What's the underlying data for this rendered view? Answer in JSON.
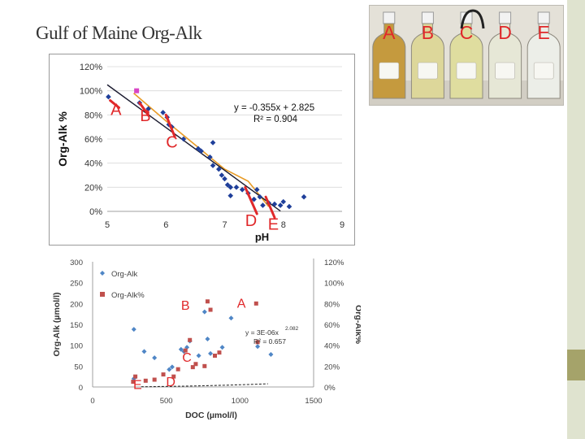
{
  "slide": {
    "title": "Gulf of Maine Org-Alk"
  },
  "photo": {
    "description_labels": [
      "A",
      "B",
      "C",
      "D",
      "E"
    ],
    "bottle_colors": [
      "#c59a3e",
      "#ddd79a",
      "#dfdd9f",
      "#e6e7d6",
      "#eceee8"
    ],
    "label_color": "#e0282a"
  },
  "chart_data": [
    {
      "type": "scatter",
      "title": "",
      "xlabel": "pH",
      "ylabel": "Org-Alk %",
      "xlim": [
        5,
        9
      ],
      "ylim": [
        0,
        1.2
      ],
      "xticks": [
        "5",
        "6",
        "7",
        "8",
        "9"
      ],
      "yticks": [
        "0%",
        "20%",
        "40%",
        "60%",
        "80%",
        "100%",
        "120%"
      ],
      "series": [
        {
          "name": "samples",
          "color": "#1f3f9a",
          "points": [
            [
              5.02,
              0.95
            ],
            [
              5.55,
              0.9
            ],
            [
              5.7,
              0.85
            ],
            [
              5.95,
              0.82
            ],
            [
              6.02,
              0.78
            ],
            [
              6.05,
              0.72
            ],
            [
              6.1,
              0.7
            ],
            [
              6.3,
              0.6
            ],
            [
              6.55,
              0.52
            ],
            [
              6.6,
              0.5
            ],
            [
              6.75,
              0.45
            ],
            [
              6.8,
              0.38
            ],
            [
              6.9,
              0.35
            ],
            [
              6.95,
              0.3
            ],
            [
              7.0,
              0.27
            ],
            [
              7.05,
              0.22
            ],
            [
              7.1,
              0.2
            ],
            [
              7.2,
              0.2
            ],
            [
              7.3,
              0.18
            ],
            [
              7.4,
              0.15
            ],
            [
              7.5,
              0.1
            ],
            [
              7.55,
              0.18
            ],
            [
              7.6,
              0.12
            ],
            [
              7.65,
              0.05
            ],
            [
              7.75,
              0.07
            ],
            [
              7.85,
              0.06
            ],
            [
              7.95,
              0.05
            ],
            [
              8.0,
              0.08
            ],
            [
              8.1,
              0.04
            ],
            [
              8.35,
              0.12
            ],
            [
              6.8,
              0.57
            ],
            [
              7.1,
              0.13
            ]
          ]
        },
        {
          "name": "highlight",
          "color": "#d946c5",
          "points": [
            [
              5.5,
              1.0
            ]
          ]
        }
      ],
      "trendline": {
        "color": "#1a1a2e",
        "x_range": [
          5.0,
          7.95
        ],
        "equation": "y = -0.355x + 2.825",
        "r2": "R² = 0.904"
      },
      "fit_line": {
        "color": "#e89b26",
        "points": [
          [
            5.45,
            0.98
          ],
          [
            6.0,
            0.75
          ],
          [
            6.5,
            0.55
          ],
          [
            7.0,
            0.35
          ],
          [
            7.4,
            0.25
          ],
          [
            7.75,
            0.04
          ]
        ]
      },
      "annotations": [
        {
          "label": "A",
          "x": 5.15,
          "y": 0.8,
          "color": "#e0282a"
        },
        {
          "label": "B",
          "x": 5.65,
          "y": 0.75,
          "color": "#e0282a"
        },
        {
          "label": "C",
          "x": 6.1,
          "y": 0.53,
          "color": "#e0282a"
        },
        {
          "label": "D",
          "x": 7.45,
          "y": -0.12,
          "color": "#e0282a"
        },
        {
          "label": "E",
          "x": 7.83,
          "y": -0.15,
          "color": "#e0282a"
        }
      ]
    },
    {
      "type": "scatter",
      "title": "",
      "xlabel": "DOC (µmol/l)",
      "ylabel": "Org-Alk (µmol/l)",
      "y2label": "Org-Alk%",
      "xlim": [
        0,
        1500
      ],
      "ylim": [
        0,
        300
      ],
      "y2lim": [
        0,
        1.2
      ],
      "xticks": [
        "0",
        "500",
        "1000",
        "1500"
      ],
      "yticks": [
        "0",
        "50",
        "100",
        "150",
        "200",
        "250",
        "300"
      ],
      "y2ticks": [
        "0%",
        "20%",
        "40%",
        "60%",
        "80%",
        "100%",
        "120%"
      ],
      "legend": [
        {
          "label": "Org-Alk",
          "color": "#4f86c6",
          "marker": "diamond"
        },
        {
          "label": "Org-Alk%",
          "color": "#c0504d",
          "marker": "square"
        }
      ],
      "series": [
        {
          "name": "Org-Alk",
          "axis": "left",
          "color": "#4f86c6",
          "points": [
            [
              280,
              138
            ],
            [
              280,
              20
            ],
            [
              350,
              85
            ],
            [
              420,
              70
            ],
            [
              520,
              42
            ],
            [
              540,
              48
            ],
            [
              600,
              90
            ],
            [
              620,
              85
            ],
            [
              640,
              95
            ],
            [
              660,
              110
            ],
            [
              720,
              75
            ],
            [
              760,
              180
            ],
            [
              780,
              115
            ],
            [
              800,
              80
            ],
            [
              880,
              95
            ],
            [
              940,
              165
            ],
            [
              1120,
              97
            ],
            [
              1210,
              78
            ]
          ]
        },
        {
          "name": "Org-Alk%",
          "axis": "right",
          "color": "#c0504d",
          "points": [
            [
              275,
              0.05
            ],
            [
              290,
              0.1
            ],
            [
              360,
              0.06
            ],
            [
              420,
              0.07
            ],
            [
              480,
              0.12
            ],
            [
              550,
              0.1
            ],
            [
              580,
              0.17
            ],
            [
              630,
              0.35
            ],
            [
              660,
              0.45
            ],
            [
              680,
              0.19
            ],
            [
              700,
              0.22
            ],
            [
              760,
              0.2
            ],
            [
              780,
              0.82
            ],
            [
              800,
              0.74
            ],
            [
              830,
              0.3
            ],
            [
              860,
              0.33
            ],
            [
              1110,
              0.8
            ],
            [
              1120,
              0.43
            ]
          ]
        }
      ],
      "trendline": {
        "color": "#2b2b2b",
        "style": "dashed",
        "equation": "y = 3E-06x",
        "exponent": "2.082",
        "r2": "R² = 0.657"
      },
      "annotations": [
        {
          "label": "A",
          "x": 1010,
          "y": 190,
          "color": "#e0282a"
        },
        {
          "label": "B",
          "x": 630,
          "y": 185,
          "color": "#e0282a"
        },
        {
          "label": "C",
          "x": 640,
          "y": 60,
          "color": "#e0282a"
        },
        {
          "label": "D",
          "x": 530,
          "y": 2,
          "color": "#e0282a"
        },
        {
          "label": "E",
          "x": 305,
          "y": -5,
          "color": "#e0282a"
        }
      ]
    }
  ]
}
